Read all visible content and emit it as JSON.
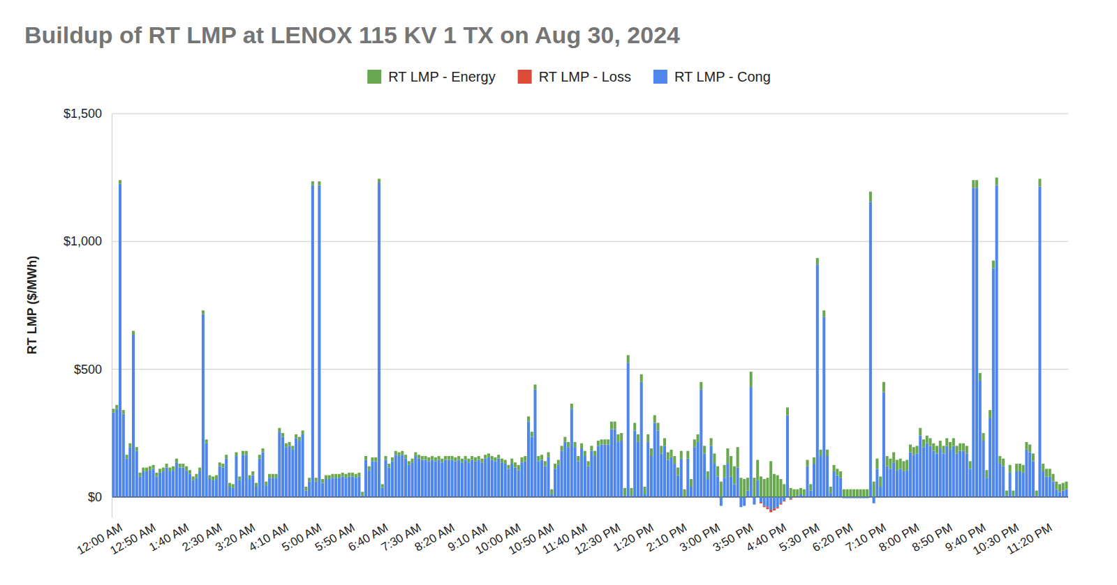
{
  "chart_data": {
    "type": "bar",
    "title": "Buildup of RT LMP at LENOX 115 KV 1 TX on Aug 30, 2024",
    "ylabel": "RT LMP ($/MWh)",
    "stacked": true,
    "legend": "top",
    "grid": true,
    "ylim": [
      -80,
      1500
    ],
    "yticks": [
      {
        "value": 0,
        "label": "$0"
      },
      {
        "value": 500,
        "label": "$500"
      },
      {
        "value": 1000,
        "label": "$1,000"
      },
      {
        "value": 1500,
        "label": "$1,500"
      }
    ],
    "categories": [
      "12:00 AM",
      null,
      null,
      null,
      null,
      null,
      null,
      null,
      null,
      null,
      "12:50 AM",
      null,
      null,
      null,
      null,
      null,
      null,
      null,
      null,
      null,
      "1:40 AM",
      null,
      null,
      null,
      null,
      null,
      null,
      null,
      null,
      null,
      "2:30 AM",
      null,
      null,
      null,
      null,
      null,
      null,
      null,
      null,
      null,
      "3:20 AM",
      null,
      null,
      null,
      null,
      null,
      null,
      null,
      null,
      null,
      "4:10 AM",
      null,
      null,
      null,
      null,
      null,
      null,
      null,
      null,
      null,
      "5:00 AM",
      null,
      null,
      null,
      null,
      null,
      null,
      null,
      null,
      null,
      "5:50 AM",
      null,
      null,
      null,
      null,
      null,
      null,
      null,
      null,
      null,
      "6:40 AM",
      null,
      null,
      null,
      null,
      null,
      null,
      null,
      null,
      null,
      "7:30 AM",
      null,
      null,
      null,
      null,
      null,
      null,
      null,
      null,
      null,
      "8:20 AM",
      null,
      null,
      null,
      null,
      null,
      null,
      null,
      null,
      null,
      "9:10 AM",
      null,
      null,
      null,
      null,
      null,
      null,
      null,
      null,
      null,
      "10:00 AM",
      null,
      null,
      null,
      null,
      null,
      null,
      null,
      null,
      null,
      "10:50 AM",
      null,
      null,
      null,
      null,
      null,
      null,
      null,
      null,
      null,
      "11:40 AM",
      null,
      null,
      null,
      null,
      null,
      null,
      null,
      null,
      null,
      "12:30 PM",
      null,
      null,
      null,
      null,
      null,
      null,
      null,
      null,
      null,
      "1:20 PM",
      null,
      null,
      null,
      null,
      null,
      null,
      null,
      null,
      null,
      "2:10 PM",
      null,
      null,
      null,
      null,
      null,
      null,
      null,
      null,
      null,
      "3:00 PM",
      null,
      null,
      null,
      null,
      null,
      null,
      null,
      null,
      null,
      "3:50 PM",
      null,
      null,
      null,
      null,
      null,
      null,
      null,
      null,
      null,
      "4:40 PM",
      null,
      null,
      null,
      null,
      null,
      null,
      null,
      null,
      null,
      "5:30 PM",
      null,
      null,
      null,
      null,
      null,
      null,
      null,
      null,
      null,
      "6:20 PM",
      null,
      null,
      null,
      null,
      null,
      null,
      null,
      null,
      null,
      "7:10 PM",
      null,
      null,
      null,
      null,
      null,
      null,
      null,
      null,
      null,
      "8:00 PM",
      null,
      null,
      null,
      null,
      null,
      null,
      null,
      null,
      null,
      "8:50 PM",
      null,
      null,
      null,
      null,
      null,
      null,
      null,
      null,
      null,
      "9:40 PM",
      null,
      null,
      null,
      null,
      null,
      null,
      null,
      null,
      null,
      "10:30 PM",
      null,
      null,
      null,
      null,
      null,
      null,
      null,
      null,
      null,
      "11:20 PM",
      null,
      null,
      null,
      null,
      null,
      null,
      null
    ],
    "series": [
      {
        "name": "RT LMP - Energy",
        "color": "#6aa84f",
        "values": [
          15,
          15,
          15,
          15,
          15,
          15,
          15,
          15,
          15,
          15,
          15,
          15,
          15,
          15,
          15,
          15,
          15,
          15,
          15,
          15,
          15,
          15,
          15,
          15,
          15,
          15,
          15,
          15,
          15,
          15,
          15,
          15,
          15,
          15,
          15,
          15,
          15,
          15,
          15,
          15,
          15,
          15,
          15,
          15,
          15,
          15,
          15,
          15,
          15,
          15,
          15,
          15,
          15,
          15,
          15,
          15,
          15,
          15,
          15,
          15,
          15,
          15,
          15,
          15,
          15,
          15,
          15,
          15,
          15,
          15,
          15,
          15,
          15,
          15,
          15,
          15,
          15,
          15,
          15,
          15,
          15,
          15,
          15,
          15,
          15,
          15,
          15,
          15,
          15,
          15,
          15,
          15,
          15,
          15,
          15,
          15,
          15,
          15,
          15,
          15,
          15,
          15,
          15,
          15,
          15,
          15,
          15,
          15,
          15,
          15,
          15,
          15,
          15,
          15,
          15,
          15,
          15,
          15,
          15,
          15,
          20,
          20,
          20,
          20,
          20,
          20,
          20,
          20,
          20,
          20,
          20,
          20,
          20,
          20,
          20,
          20,
          20,
          20,
          20,
          20,
          20,
          20,
          20,
          20,
          20,
          20,
          20,
          20,
          20,
          20,
          30,
          30,
          30,
          30,
          30,
          30,
          30,
          30,
          30,
          30,
          30,
          30,
          30,
          30,
          30,
          30,
          30,
          30,
          30,
          30,
          30,
          30,
          30,
          30,
          30,
          30,
          30,
          30,
          30,
          30,
          30,
          40,
          40,
          60,
          50,
          60,
          80,
          70,
          80,
          75,
          70,
          50,
          60,
          75,
          80,
          80,
          70,
          75,
          140,
          90,
          85,
          70,
          50,
          30,
          35,
          30,
          25,
          25,
          25,
          25,
          25,
          25,
          25,
          25,
          25,
          25,
          25,
          25,
          25,
          25,
          30,
          30,
          30,
          30,
          30,
          30,
          30,
          30,
          40,
          60,
          40,
          40,
          40,
          40,
          40,
          40,
          40,
          40,
          40,
          40,
          30,
          30,
          30,
          30,
          30,
          30,
          30,
          30,
          30,
          30,
          30,
          30,
          30,
          30,
          30,
          30,
          30,
          30,
          30,
          30,
          30,
          30,
          30,
          30,
          30,
          30,
          30,
          30,
          30,
          20,
          30,
          20,
          30,
          30,
          30,
          30,
          30,
          30,
          20,
          30,
          30,
          30,
          30,
          30,
          30,
          30,
          30,
          30
        ]
      },
      {
        "name": "RT LMP - Loss",
        "color": "#dc4a38",
        "values": [
          0,
          0,
          0,
          0,
          0,
          0,
          0,
          0,
          0,
          0,
          0,
          0,
          0,
          0,
          0,
          0,
          0,
          0,
          0,
          0,
          0,
          0,
          0,
          0,
          0,
          0,
          0,
          0,
          0,
          0,
          0,
          0,
          0,
          0,
          0,
          0,
          0,
          0,
          0,
          0,
          0,
          0,
          0,
          0,
          0,
          0,
          0,
          0,
          0,
          0,
          0,
          0,
          0,
          0,
          0,
          0,
          0,
          0,
          0,
          0,
          0,
          0,
          0,
          0,
          0,
          0,
          0,
          0,
          0,
          0,
          0,
          0,
          0,
          0,
          0,
          0,
          0,
          0,
          0,
          0,
          0,
          0,
          0,
          0,
          0,
          0,
          0,
          0,
          0,
          0,
          0,
          0,
          0,
          0,
          0,
          0,
          0,
          0,
          0,
          0,
          0,
          0,
          0,
          0,
          0,
          0,
          0,
          0,
          0,
          0,
          0,
          0,
          0,
          0,
          0,
          0,
          0,
          0,
          0,
          0,
          0,
          0,
          0,
          0,
          0,
          0,
          0,
          0,
          0,
          0,
          0,
          0,
          0,
          0,
          0,
          0,
          0,
          0,
          0,
          0,
          0,
          0,
          0,
          0,
          0,
          0,
          0,
          0,
          0,
          0,
          0,
          0,
          0,
          0,
          0,
          0,
          0,
          0,
          0,
          0,
          0,
          0,
          0,
          0,
          0,
          0,
          0,
          0,
          0,
          0,
          0,
          0,
          0,
          0,
          0,
          0,
          0,
          0,
          0,
          0,
          0,
          0,
          0,
          0,
          0,
          0,
          0,
          0,
          0,
          0,
          0,
          0,
          0,
          0,
          0,
          -5,
          -5,
          -8,
          -10,
          -8,
          -5,
          -5,
          -3,
          0,
          -3,
          0,
          0,
          0,
          0,
          0,
          0,
          0,
          0,
          0,
          0,
          0,
          0,
          0,
          0,
          0,
          0,
          0,
          0,
          0,
          0,
          0,
          0,
          0,
          0,
          0,
          0,
          0,
          0,
          0,
          0,
          0,
          0,
          0,
          0,
          0,
          0,
          0,
          0,
          0,
          0,
          0,
          0,
          0,
          0,
          0,
          0,
          0,
          0,
          0,
          0,
          0,
          0,
          0,
          0,
          0,
          0,
          0,
          0,
          0,
          0,
          0,
          0,
          0,
          0,
          0,
          0,
          0,
          0,
          0,
          0,
          0,
          0,
          0,
          0,
          0,
          0,
          0,
          0,
          0,
          0,
          0,
          0,
          0
        ]
      },
      {
        "name": "RT LMP - Cong",
        "color": "#4f86ec",
        "values": [
          330,
          345,
          1225,
          325,
          150,
          195,
          635,
          180,
          80,
          100,
          100,
          105,
          110,
          80,
          95,
          100,
          115,
          100,
          105,
          135,
          115,
          115,
          105,
          90,
          65,
          75,
          100,
          715,
          210,
          70,
          65,
          70,
          120,
          115,
          150,
          40,
          35,
          160,
          65,
          165,
          165,
          70,
          85,
          40,
          150,
          175,
          45,
          75,
          75,
          75,
          255,
          235,
          195,
          200,
          185,
          230,
          220,
          245,
          25,
          60,
          1220,
          60,
          1220,
          55,
          70,
          70,
          75,
          75,
          75,
          80,
          75,
          80,
          80,
          75,
          80,
          5,
          145,
          105,
          140,
          140,
          1230,
          35,
          145,
          115,
          140,
          165,
          160,
          165,
          150,
          125,
          135,
          160,
          150,
          145,
          145,
          140,
          145,
          140,
          145,
          135,
          145,
          145,
          145,
          140,
          145,
          135,
          145,
          135,
          145,
          140,
          145,
          135,
          150,
          155,
          145,
          140,
          150,
          135,
          130,
          110,
          130,
          115,
          105,
          135,
          140,
          295,
          235,
          420,
          140,
          145,
          120,
          155,
          10,
          110,
          125,
          180,
          215,
          195,
          345,
          195,
          140,
          190,
          160,
          120,
          180,
          160,
          200,
          205,
          205,
          205,
          265,
          265,
          215,
          220,
          5,
          525,
          5,
          260,
          215,
          450,
          10,
          215,
          160,
          290,
          260,
          170,
          200,
          145,
          155,
          130,
          85,
          150,
          0,
          150,
          40,
          195,
          215,
          420,
          170,
          70,
          200,
          130,
          80,
          -35,
          75,
          130,
          80,
          50,
          115,
          -40,
          -35,
          25,
          430,
          -30,
          65,
          -20,
          -35,
          -40,
          -50,
          -45,
          -40,
          -25,
          -15,
          320,
          -8,
          0,
          5,
          10,
          5,
          120,
          25,
          130,
          910,
          160,
          705,
          160,
          15,
          100,
          85,
          75,
          -5,
          -5,
          -5,
          -5,
          -5,
          -5,
          -5,
          -5,
          1155,
          -25,
          110,
          40,
          410,
          120,
          110,
          135,
          105,
          110,
          100,
          105,
          175,
          165,
          170,
          240,
          195,
          210,
          200,
          180,
          170,
          190,
          170,
          200,
          185,
          200,
          170,
          180,
          180,
          170,
          110,
          1210,
          1210,
          455,
          220,
          75,
          310,
          895,
          1220,
          130,
          120,
          5,
          95,
          5,
          100,
          100,
          95,
          185,
          175,
          140,
          5,
          1215,
          100,
          80,
          80,
          60,
          30,
          20,
          25,
          30
        ]
      }
    ]
  }
}
